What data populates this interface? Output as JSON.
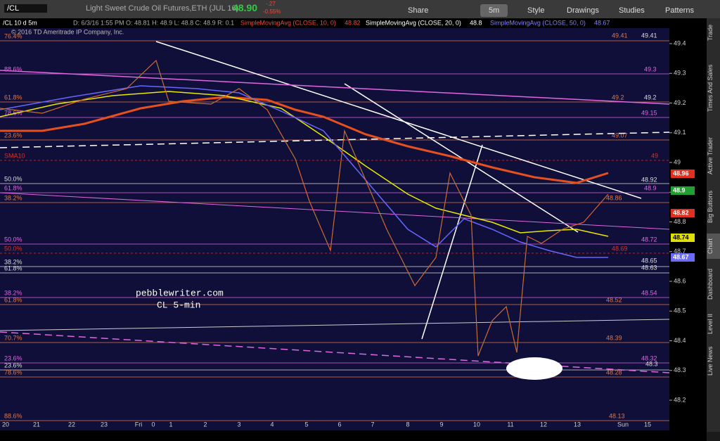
{
  "toolbar": {
    "symbol": "/CL",
    "description": "Light Sweet Crude Oil Futures,ETH (JUL 16)",
    "last": "48.90",
    "change": "-.27",
    "change_pct": "-0.55%",
    "buttons": [
      "Share",
      "5m",
      "Style",
      "Drawings",
      "Studies",
      "Patterns"
    ]
  },
  "info": {
    "title": "/CL 10 d 5m",
    "copyright": "© 2016 TD Ameritrade IP Company, Inc.",
    "ohlc": "D: 6/3/16 1:55 PM  O: 48.81  H: 48.9  L: 48.8  C: 48.9  R: 0.1",
    "studies": [
      {
        "name": "SimpleMovingAvg (CLOSE, 10, 0)",
        "value": "48.82"
      },
      {
        "name": "SimpleMovingAvg (CLOSE, 20, 0)",
        "value": "48.8"
      },
      {
        "name": "SimpleMovingAvg (CLOSE, 50, 0)",
        "value": "48.67"
      }
    ]
  },
  "price_axis": {
    "ticks": [
      49.4,
      49.3,
      49.2,
      49.1,
      49,
      48.9,
      48.8,
      48.7,
      48.6,
      48.5,
      48.4,
      48.3,
      48.2
    ],
    "badges": [
      "48.96",
      "48.9",
      "48.82",
      "48.74",
      "48.67"
    ]
  },
  "time_axis": [
    "20",
    "21",
    "22",
    "23",
    "Fri",
    "0",
    "1",
    "2",
    "3",
    "4",
    "5",
    "6",
    "7",
    "8",
    "9",
    "10",
    "11",
    "12",
    "13",
    "Sun",
    "15"
  ],
  "levels_left": [
    "76.4%",
    "88.6%",
    "61.8%",
    "78.6%",
    "23.6%",
    "SMA10",
    "50.0%",
    "61.8%",
    "38.2%",
    "50.0%",
    "50.0%",
    "38.2%",
    "61.8%",
    "38.2%",
    "61.8%",
    "70.7%",
    "23.6%",
    "23.6%",
    "78.6%",
    "88.6%"
  ],
  "levels_right": [
    "49.41",
    "49.41",
    "49.3",
    "49.2",
    "49.2",
    "49.15",
    "49.07",
    "49",
    "48.92",
    "48.9",
    "48.86",
    "48.72",
    "48.69",
    "48.65",
    "48.63",
    "48.54",
    "48.52",
    "48.39",
    "48.32",
    "48.3",
    "48.28",
    "48.13"
  ],
  "annotations": [
    "pebblewriter.com",
    "CL 5-min"
  ],
  "side_tabs": [
    "Trade",
    "Times And Sales",
    "Active Trader",
    "Big Buttons",
    "Chart",
    "Dashboard",
    "Level II",
    "Live News"
  ]
}
